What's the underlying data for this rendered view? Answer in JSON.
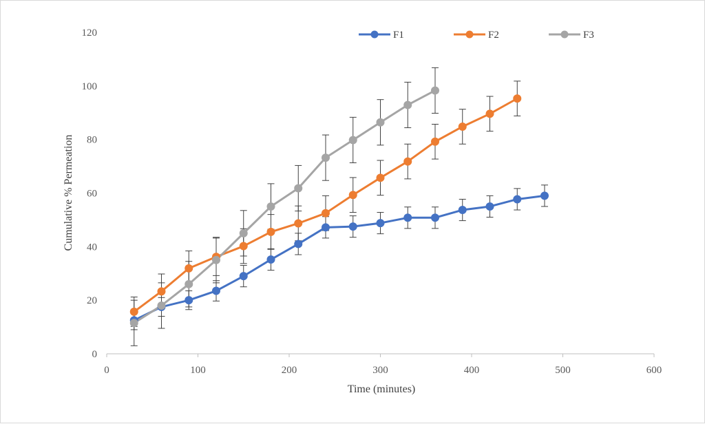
{
  "chart_data": {
    "type": "line",
    "title": "",
    "xlabel": "Time (minutes)",
    "ylabel": "Cumulative % Permeation",
    "xlim": [
      0,
      600
    ],
    "ylim": [
      0,
      120
    ],
    "xticks": [
      0,
      100,
      200,
      300,
      400,
      500,
      600
    ],
    "yticks": [
      0,
      20,
      40,
      60,
      80,
      100,
      120
    ],
    "grid": false,
    "legend_position": "top",
    "series": [
      {
        "name": "F1",
        "color": "#4472c4",
        "x": [
          30,
          60,
          90,
          120,
          150,
          180,
          210,
          240,
          270,
          300,
          330,
          360,
          390,
          420,
          450,
          480
        ],
        "y": [
          12.5,
          17.5,
          20,
          23.5,
          29,
          35.2,
          41,
          47.2,
          47.5,
          48.8,
          50.8,
          50.8,
          53.7,
          55,
          57.7,
          59
        ],
        "err": [
          3.5,
          3.5,
          3.5,
          3.8,
          4,
          4,
          4,
          4,
          4,
          4,
          4,
          4,
          4,
          4,
          4,
          4
        ]
      },
      {
        "name": "F2",
        "color": "#ed7d31",
        "x": [
          30,
          60,
          90,
          120,
          150,
          180,
          210,
          240,
          270,
          300,
          330,
          360,
          390,
          420,
          450
        ],
        "y": [
          15.7,
          23.3,
          31.9,
          36.2,
          40.2,
          45.5,
          48.7,
          52.5,
          59.3,
          65.7,
          71.8,
          79.2,
          84.8,
          89.6,
          95.3
        ],
        "err": [
          5.5,
          6.5,
          6.5,
          7,
          6.5,
          6.5,
          6.5,
          6.5,
          6.5,
          6.5,
          6.5,
          6.5,
          6.5,
          6.5,
          6.5
        ]
      },
      {
        "name": "F3",
        "color": "#a5a5a5",
        "x": [
          30,
          60,
          90,
          120,
          150,
          180,
          210,
          240,
          270,
          300,
          330,
          360
        ],
        "y": [
          11.5,
          18,
          26,
          35,
          45,
          55,
          61.8,
          73.2,
          79.8,
          86.4,
          92.9,
          98.3
        ],
        "err": [
          8.5,
          8.5,
          8.5,
          8.5,
          8.5,
          8.5,
          8.5,
          8.5,
          8.5,
          8.5,
          8.5,
          8.5
        ]
      }
    ]
  }
}
